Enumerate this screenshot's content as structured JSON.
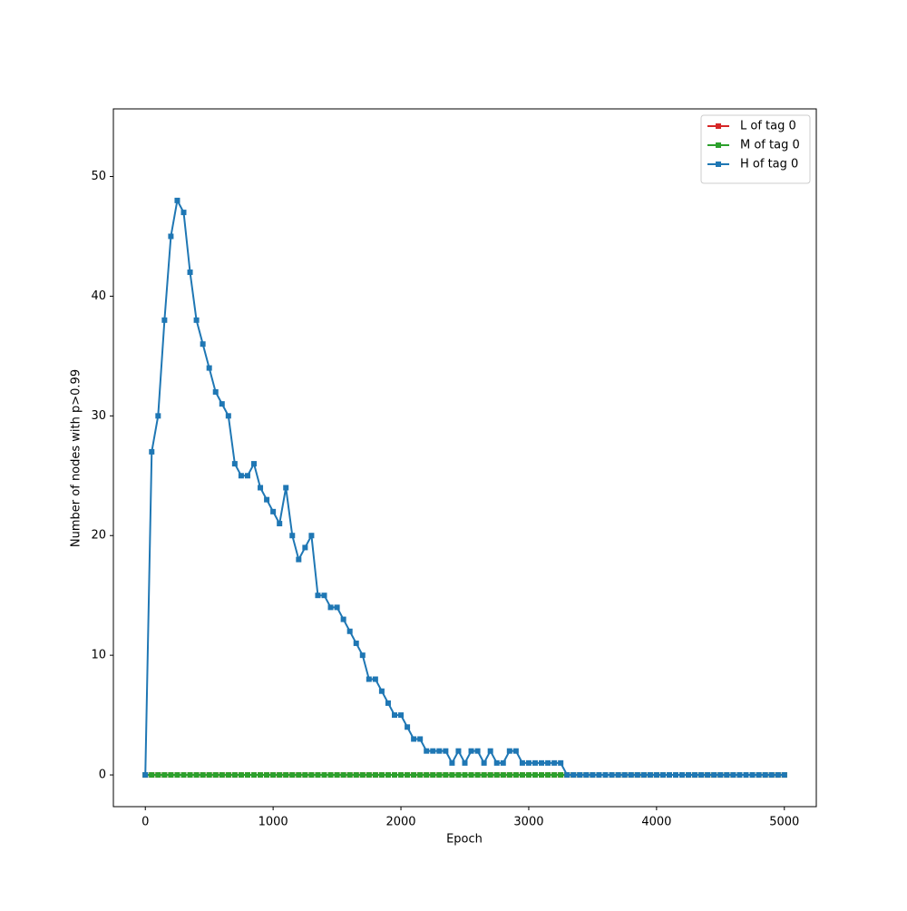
{
  "chart_data": {
    "type": "line",
    "xlabel": "Epoch",
    "ylabel": "Number of nodes with p>0.99",
    "x": [
      0,
      50,
      100,
      150,
      200,
      250,
      300,
      350,
      400,
      450,
      500,
      550,
      600,
      650,
      700,
      750,
      800,
      850,
      900,
      950,
      1000,
      1050,
      1100,
      1150,
      1200,
      1250,
      1300,
      1350,
      1400,
      1450,
      1500,
      1550,
      1600,
      1650,
      1700,
      1750,
      1800,
      1850,
      1900,
      1950,
      2000,
      2050,
      2100,
      2150,
      2200,
      2250,
      2300,
      2350,
      2400,
      2450,
      2500,
      2550,
      2600,
      2650,
      2700,
      2750,
      2800,
      2850,
      2900,
      2950,
      3000,
      3050,
      3100,
      3150,
      3200,
      3250,
      3300,
      3350,
      3400,
      3450,
      3500,
      3550,
      3600,
      3650,
      3700,
      3750,
      3800,
      3850,
      3900,
      3950,
      4000,
      4050,
      4100,
      4150,
      4200,
      4250,
      4300,
      4350,
      4400,
      4450,
      4500,
      4550,
      4600,
      4650,
      4700,
      4750,
      4800,
      4850,
      4900,
      4950,
      5000
    ],
    "series": [
      {
        "name": "L of tag 0",
        "color": "#d62728",
        "values": [
          0,
          0,
          0,
          0,
          0,
          0,
          0,
          0,
          0,
          0,
          0,
          0,
          0,
          0,
          0,
          0,
          0,
          0,
          0,
          0,
          0,
          0,
          0,
          0,
          0,
          0,
          0,
          0,
          0,
          0,
          0,
          0,
          0,
          0,
          0,
          0,
          0,
          0,
          0,
          0,
          0,
          0,
          0,
          0,
          0,
          0,
          0,
          0,
          0,
          0,
          0,
          0,
          0,
          0,
          0,
          0,
          0,
          0,
          0,
          0,
          0,
          0,
          0,
          0,
          0,
          0,
          0,
          0,
          0,
          0,
          0,
          0,
          0,
          0,
          0,
          0,
          0,
          0,
          0,
          0,
          0,
          0,
          0,
          0,
          0,
          0,
          0,
          0,
          0,
          0,
          0,
          0,
          0,
          0,
          0,
          0,
          0,
          0,
          0,
          0,
          0
        ]
      },
      {
        "name": "M of tag 0",
        "color": "#2ca02c",
        "values": [
          0,
          0,
          0,
          0,
          0,
          0,
          0,
          0,
          0,
          0,
          0,
          0,
          0,
          0,
          0,
          0,
          0,
          0,
          0,
          0,
          0,
          0,
          0,
          0,
          0,
          0,
          0,
          0,
          0,
          0,
          0,
          0,
          0,
          0,
          0,
          0,
          0,
          0,
          0,
          0,
          0,
          0,
          0,
          0,
          0,
          0,
          0,
          0,
          0,
          0,
          0,
          0,
          0,
          0,
          0,
          0,
          0,
          0,
          0,
          0,
          0,
          0,
          0,
          0,
          0,
          0,
          0,
          0,
          0,
          0,
          0,
          0,
          0,
          0,
          0,
          0,
          0,
          0,
          0,
          0,
          0,
          0,
          0,
          0,
          0,
          0,
          0,
          0,
          0,
          0,
          0,
          0,
          0,
          0,
          0,
          0,
          0,
          0,
          0,
          0,
          0
        ]
      },
      {
        "name": "H of tag 0",
        "color": "#1f77b4",
        "values": [
          0,
          27,
          30,
          38,
          45,
          48,
          47,
          42,
          38,
          36,
          34,
          32,
          31,
          30,
          26,
          25,
          25,
          26,
          24,
          23,
          22,
          21,
          24,
          20,
          18,
          19,
          20,
          15,
          15,
          14,
          14,
          13,
          12,
          11,
          10,
          8,
          8,
          7,
          6,
          5,
          5,
          4,
          3,
          3,
          2,
          2,
          2,
          2,
          1,
          2,
          1,
          2,
          2,
          1,
          2,
          1,
          1,
          2,
          2,
          1,
          1,
          1,
          1,
          1,
          1,
          1,
          0,
          0,
          0,
          0,
          0,
          0,
          0,
          0,
          0,
          0,
          0,
          0,
          0,
          0,
          0,
          0,
          0,
          0,
          0,
          0,
          0,
          0,
          0,
          0,
          0,
          0,
          0,
          0,
          0,
          0,
          0,
          0,
          0,
          0,
          0
        ]
      }
    ],
    "xlim": [
      -250,
      5250
    ],
    "xticks": [
      0,
      1000,
      2000,
      3000,
      4000,
      5000
    ],
    "ylim": [
      -2.65,
      55.65
    ],
    "yticks": [
      0,
      10,
      20,
      30,
      40,
      50
    ],
    "grid": false,
    "legend": "upper right"
  }
}
